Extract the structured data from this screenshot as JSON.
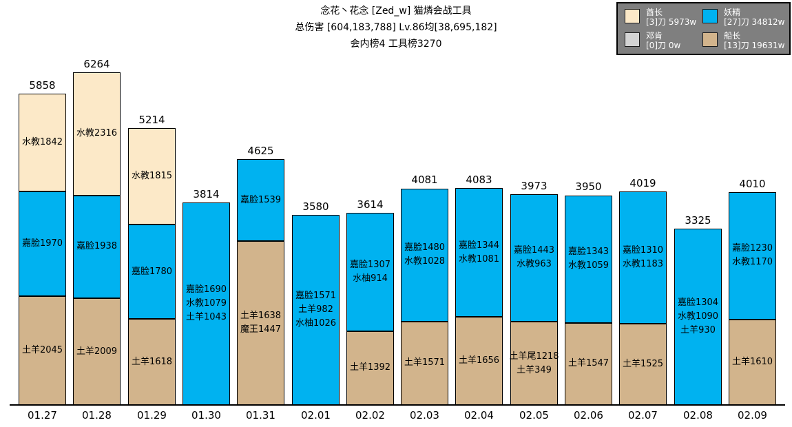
{
  "title": {
    "line1": "念花丶花念 [Zed_w] 猫燐会战工具",
    "line2": "总伤害 [604,183,788] Lv.86均[38,695,182]",
    "line3": "会内榜4 工具榜3270"
  },
  "legend": {
    "background_color": "#7f7f7f",
    "items": [
      {
        "key": "chieftain",
        "name": "酋长",
        "detail": "[3]刀 5973w",
        "color": "#fce9c8"
      },
      {
        "key": "fairy",
        "name": "妖精",
        "detail": "[27]刀 34812w",
        "color": "#00b2f0"
      },
      {
        "key": "duncan",
        "name": "邓肯",
        "detail": "[0]刀 0w",
        "color": "#d3d3d3"
      },
      {
        "key": "captain",
        "name": "船长",
        "detail": "[13]刀 19631w",
        "color": "#d2b48c"
      }
    ]
  },
  "chart_data": {
    "type": "bar",
    "stacked": true,
    "title": "念花丶花念 [Zed_w] 猫燐会战工具",
    "subtitle": "总伤害 [604,183,788] Lv.86均[38,695,182]",
    "subtitle2": "会内榜4 工具榜3270",
    "unit": "w (万)",
    "ylim": [
      0,
      6600
    ],
    "grid": false,
    "legend_position": "top-right",
    "colors": {
      "chieftain": "#fce9c8",
      "fairy": "#00b2f0",
      "duncan": "#d3d3d3",
      "captain": "#d2b48c"
    },
    "categories": [
      "01.27",
      "01.28",
      "01.29",
      "01.30",
      "01.31",
      "02.01",
      "02.02",
      "02.03",
      "02.04",
      "02.05",
      "02.06",
      "02.07",
      "02.08",
      "02.09"
    ],
    "bars": [
      {
        "date": "01.27",
        "total": 5858,
        "segments": [
          {
            "boss": "captain",
            "value": 2045,
            "labels": [
              "土羊2045"
            ]
          },
          {
            "boss": "fairy",
            "value": 1970,
            "labels": [
              "嘉脸1970"
            ]
          },
          {
            "boss": "chieftain",
            "value": 1842,
            "labels": [
              "水教1842"
            ]
          }
        ]
      },
      {
        "date": "01.28",
        "total": 6264,
        "segments": [
          {
            "boss": "captain",
            "value": 2009,
            "labels": [
              "土羊2009"
            ]
          },
          {
            "boss": "fairy",
            "value": 1938,
            "labels": [
              "嘉脸1938"
            ]
          },
          {
            "boss": "chieftain",
            "value": 2316,
            "labels": [
              "水教2316"
            ]
          }
        ]
      },
      {
        "date": "01.29",
        "total": 5214,
        "segments": [
          {
            "boss": "captain",
            "value": 1618,
            "labels": [
              "土羊1618"
            ]
          },
          {
            "boss": "fairy",
            "value": 1780,
            "labels": [
              "嘉脸1780"
            ]
          },
          {
            "boss": "chieftain",
            "value": 1815,
            "labels": [
              "水教1815"
            ]
          }
        ]
      },
      {
        "date": "01.30",
        "total": 3814,
        "segments": [
          {
            "boss": "fairy",
            "value": 3814,
            "labels": [
              "嘉脸1690",
              "水教1079",
              "土羊1043"
            ]
          }
        ]
      },
      {
        "date": "01.31",
        "total": 4625,
        "segments": [
          {
            "boss": "captain",
            "value": 3085,
            "labels": [
              "土羊1638",
              "魔王1447"
            ]
          },
          {
            "boss": "fairy",
            "value": 1539,
            "labels": [
              "嘉脸1539"
            ]
          }
        ]
      },
      {
        "date": "02.01",
        "total": 3580,
        "segments": [
          {
            "boss": "fairy",
            "value": 3580,
            "labels": [
              "嘉脸1571",
              "土羊982",
              "水柚1026"
            ]
          }
        ]
      },
      {
        "date": "02.02",
        "total": 3614,
        "segments": [
          {
            "boss": "captain",
            "value": 1392,
            "labels": [
              "土羊1392"
            ]
          },
          {
            "boss": "fairy",
            "value": 2221,
            "labels": [
              "嘉脸1307",
              "水柚914"
            ]
          }
        ]
      },
      {
        "date": "02.03",
        "total": 4081,
        "segments": [
          {
            "boss": "captain",
            "value": 1571,
            "labels": [
              "土羊1571"
            ]
          },
          {
            "boss": "fairy",
            "value": 2508,
            "labels": [
              "嘉脸1480",
              "水教1028"
            ]
          }
        ]
      },
      {
        "date": "02.04",
        "total": 4083,
        "segments": [
          {
            "boss": "captain",
            "value": 1656,
            "labels": [
              "土羊1656"
            ]
          },
          {
            "boss": "fairy",
            "value": 2425,
            "labels": [
              "嘉脸1344",
              "水教1081"
            ]
          }
        ]
      },
      {
        "date": "02.05",
        "total": 3973,
        "segments": [
          {
            "boss": "captain",
            "value": 1567,
            "labels": [
              "土羊尾1218",
              "土羊349"
            ]
          },
          {
            "boss": "fairy",
            "value": 2406,
            "labels": [
              "嘉脸1443",
              "水教963"
            ]
          }
        ]
      },
      {
        "date": "02.06",
        "total": 3950,
        "segments": [
          {
            "boss": "captain",
            "value": 1547,
            "labels": [
              "土羊1547"
            ]
          },
          {
            "boss": "fairy",
            "value": 2402,
            "labels": [
              "嘉脸1343",
              "水教1059"
            ]
          }
        ]
      },
      {
        "date": "02.07",
        "total": 4019,
        "segments": [
          {
            "boss": "captain",
            "value": 1525,
            "labels": [
              "土羊1525"
            ]
          },
          {
            "boss": "fairy",
            "value": 2493,
            "labels": [
              "嘉脸1310",
              "水教1183"
            ]
          }
        ]
      },
      {
        "date": "02.08",
        "total": 3325,
        "segments": [
          {
            "boss": "fairy",
            "value": 3325,
            "labels": [
              "嘉脸1304",
              "水教1090",
              "土羊930"
            ]
          }
        ]
      },
      {
        "date": "02.09",
        "total": 4010,
        "segments": [
          {
            "boss": "captain",
            "value": 1610,
            "labels": [
              "土羊1610"
            ]
          },
          {
            "boss": "fairy",
            "value": 2400,
            "labels": [
              "嘉脸1230",
              "水教1170"
            ]
          }
        ]
      }
    ]
  }
}
